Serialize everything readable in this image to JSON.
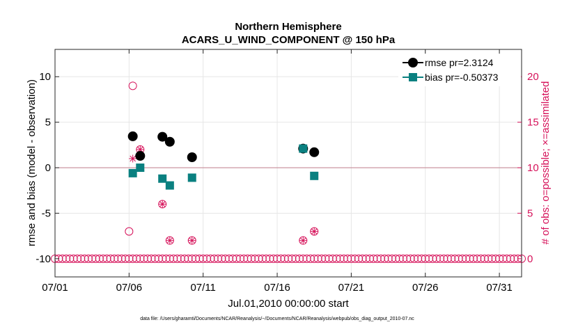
{
  "chart_data": {
    "type": "scatter",
    "title": "Northern Hemisphere",
    "subtitle": "ACARS_U_WIND_COMPONENT @ 150 hPa",
    "xlabel": "Jul.01,2010 00:00:00 start",
    "ylabel": "rmse and bias (model - observation)",
    "y2label": "# of obs: o=possible; ×=assimilated",
    "footer": "data file: /Users/gharamti/Documents/NCAR/Reanalysis/~/Documents/NCAR/Reanalysis/webpub/obs_diag_output_2010-07.nc",
    "xlim": [
      0,
      31.5
    ],
    "ylim": [
      -12,
      13
    ],
    "y2lim": [
      -2,
      23
    ],
    "x_ticks": [
      {
        "pos": 0,
        "label": "07/01"
      },
      {
        "pos": 5,
        "label": "07/06"
      },
      {
        "pos": 10,
        "label": "07/11"
      },
      {
        "pos": 15,
        "label": "07/16"
      },
      {
        "pos": 20,
        "label": "07/21"
      },
      {
        "pos": 25,
        "label": "07/26"
      },
      {
        "pos": 30,
        "label": "07/31"
      }
    ],
    "y_ticks": [
      {
        "val": 10,
        "label": "10"
      },
      {
        "val": 5,
        "label": "5"
      },
      {
        "val": 0,
        "label": "0"
      },
      {
        "val": -5,
        "label": "-5"
      },
      {
        "val": -10,
        "label": "-10"
      }
    ],
    "y2_ticks": [
      {
        "val": 20,
        "label": "20"
      },
      {
        "val": 15,
        "label": "15"
      },
      {
        "val": 10,
        "label": "10"
      },
      {
        "val": 5,
        "label": "5"
      },
      {
        "val": 0,
        "label": "0"
      }
    ],
    "zero_line": 0,
    "legend_position": "top-right",
    "series": [
      {
        "name": "rmse pr=2.3124",
        "color": "#000000",
        "marker": "circle",
        "x": [
          5.25,
          5.75,
          7.25,
          7.75,
          9.25,
          16.75,
          17.5
        ],
        "y": [
          3.45,
          1.3,
          3.4,
          2.85,
          1.15,
          2.1,
          1.7
        ]
      },
      {
        "name": "bias pr=-0.50373",
        "color": "#0a8080",
        "marker": "square",
        "x": [
          5.25,
          5.75,
          7.25,
          7.75,
          9.25,
          16.75,
          17.5
        ],
        "y": [
          -0.6,
          0.0,
          -1.2,
          -1.95,
          -1.1,
          2.1,
          -0.9
        ]
      }
    ],
    "obs_possible": {
      "name": "possible",
      "color": "#d6125a",
      "x": [
        5.0,
        5.25,
        5.75,
        7.25,
        7.75,
        9.25,
        16.75,
        17.5
      ],
      "y": [
        3,
        19,
        12,
        6,
        2,
        2,
        2,
        3
      ],
      "baseline_value": 0,
      "baseline_x_start": -0.25,
      "baseline_x_step": 0.25,
      "baseline_count": 128
    },
    "obs_assimilated": {
      "name": "assimilated",
      "color": "#d6125a",
      "x": [
        5.25,
        5.75,
        7.25,
        7.75,
        9.25,
        16.75,
        17.5
      ],
      "y": [
        11,
        12,
        6,
        2,
        2,
        2,
        3
      ]
    }
  }
}
